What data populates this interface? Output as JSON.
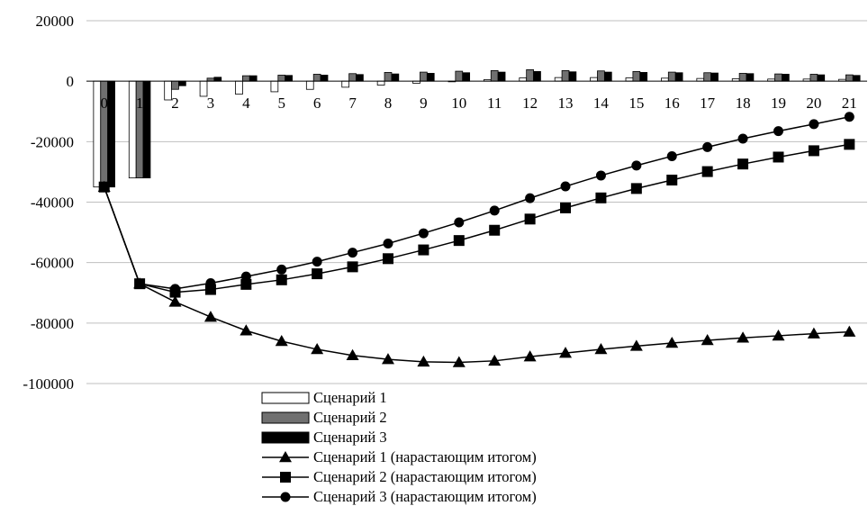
{
  "chart_data": {
    "type": "bar",
    "x": [
      0,
      1,
      2,
      3,
      4,
      5,
      6,
      7,
      8,
      9,
      10,
      11,
      12,
      13,
      14,
      15,
      16,
      17,
      18,
      19,
      20,
      21
    ],
    "ylim": [
      -100000,
      20000
    ],
    "y_ticks": [
      "20000",
      "0",
      "-20000",
      "-40000",
      "-60000",
      "-80000",
      "-100000"
    ],
    "y_tick_values": [
      20000,
      0,
      -20000,
      -40000,
      -60000,
      -80000,
      -100000
    ],
    "grid": true,
    "legend_position": "bottom",
    "series": [
      {
        "name": "Сценарий 1",
        "kind": "bar",
        "fill": "#ffffff",
        "values": [
          -35000,
          -32000,
          -6200,
          -5000,
          -4300,
          -3500,
          -2700,
          -2000,
          -1300,
          -700,
          -200,
          500,
          1100,
          1200,
          1200,
          1100,
          1000,
          900,
          800,
          700,
          700,
          600
        ]
      },
      {
        "name": "Сценарий 2",
        "kind": "bar",
        "fill": "#707070",
        "values": [
          -35000,
          -32000,
          -2700,
          1000,
          1800,
          2000,
          2300,
          2500,
          2900,
          3000,
          3300,
          3500,
          3800,
          3500,
          3400,
          3200,
          3000,
          2800,
          2600,
          2400,
          2300,
          2100
        ]
      },
      {
        "name": "Сценарий 3",
        "kind": "bar",
        "fill": "#000000",
        "values": [
          -35000,
          -32000,
          -1500,
          1300,
          1800,
          1900,
          2000,
          2200,
          2400,
          2600,
          2800,
          3000,
          3200,
          3100,
          3000,
          2900,
          2800,
          2700,
          2500,
          2300,
          2100,
          1900
        ]
      },
      {
        "name": "Сценарий 1 (нарастающим итогом)",
        "kind": "line",
        "marker": "triangle",
        "values": [
          -35000,
          -67000,
          -73000,
          -78000,
          -82500,
          -86000,
          -88700,
          -90700,
          -92000,
          -92800,
          -93000,
          -92500,
          -91100,
          -89900,
          -88700,
          -87600,
          -86600,
          -85700,
          -84900,
          -84200,
          -83500,
          -82900
        ]
      },
      {
        "name": "Сценарий 2 (нарастающим итогом)",
        "kind": "line",
        "marker": "square",
        "values": [
          -35000,
          -67000,
          -69800,
          -68900,
          -67200,
          -65700,
          -63700,
          -61400,
          -58700,
          -55800,
          -52700,
          -49300,
          -45600,
          -41900,
          -38600,
          -35500,
          -32700,
          -29900,
          -27400,
          -25100,
          -23000,
          -20900
        ]
      },
      {
        "name": "Сценарий 3 (нарастающим итогом)",
        "kind": "line",
        "marker": "circle",
        "values": [
          -35000,
          -67000,
          -68700,
          -66800,
          -64600,
          -62300,
          -59700,
          -56700,
          -53700,
          -50300,
          -46700,
          -42800,
          -38700,
          -34800,
          -31200,
          -27900,
          -24800,
          -21800,
          -19000,
          -16500,
          -14200,
          -11800
        ]
      }
    ]
  }
}
